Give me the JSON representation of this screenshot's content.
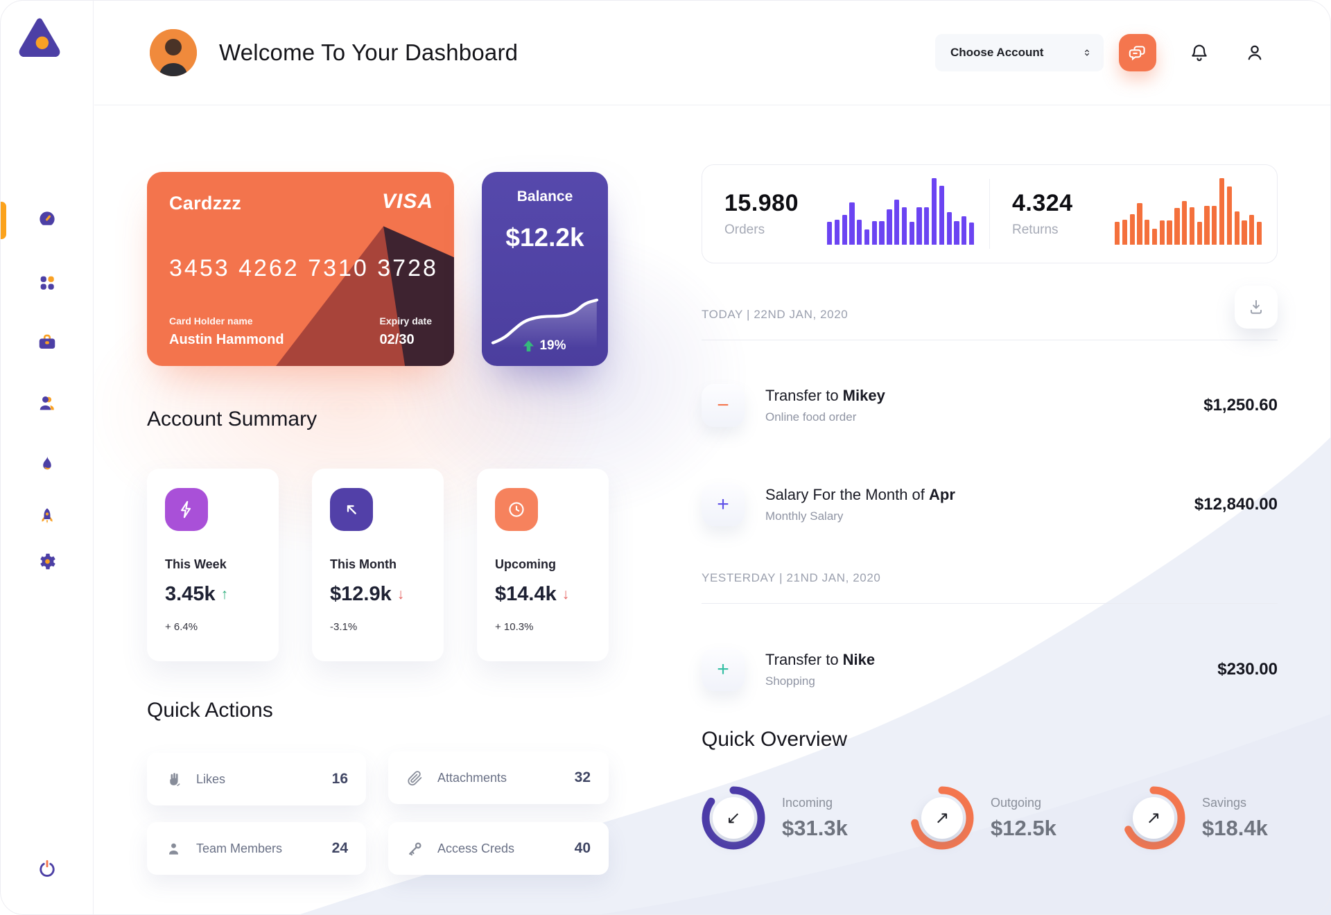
{
  "theme": {
    "purple": "#4C3FA5",
    "amber": "#F9A125",
    "salmon": "#F4764E",
    "violet_bars": "#6B44F2",
    "orange_bars": "#F4703C",
    "green": "#2EAE7D",
    "red": "#E4605E"
  },
  "header": {
    "title": "Welcome To Your Dashboard",
    "account_selector_label": "Choose Account"
  },
  "sidebar": {
    "items": [
      "dashboard",
      "apps",
      "work",
      "team",
      "activity",
      "launch",
      "settings"
    ],
    "logout": "power"
  },
  "card": {
    "name": "Cardzzz",
    "brand": "VISA",
    "number": "3453 4262 7310 3728",
    "holder_label": "Card Holder name",
    "holder": "Austin Hammond",
    "expiry_label": "Expiry date",
    "expiry": "02/30"
  },
  "balance": {
    "title": "Balance",
    "amount": "$12.2k",
    "change": "19%",
    "change_color": "#35B97C"
  },
  "account_summary": {
    "title": "Account Summary",
    "cards": [
      {
        "label": "This Week",
        "value": "3.45k",
        "arrow": "↑",
        "arrow_color": "#2EAE7D",
        "pct": "+ 6.4%",
        "icon": "lightning",
        "icon_bg": "#A950D8"
      },
      {
        "label": "This Month",
        "value": "$12.9k",
        "arrow": "↓",
        "arrow_color": "#E4605E",
        "pct": "-3.1%",
        "icon": "trend-up-left",
        "icon_bg": "#5240A8"
      },
      {
        "label": "Upcoming",
        "value": "$14.4k",
        "arrow": "↓",
        "arrow_color": "#E4605E",
        "pct": "+ 10.3%",
        "icon": "clock",
        "icon_bg": "#F6825D"
      }
    ]
  },
  "quick_actions": {
    "title": "Quick Actions",
    "items": [
      {
        "label": "Likes",
        "count": "16",
        "icon": "hand"
      },
      {
        "label": "Attachments",
        "count": "32",
        "icon": "paperclip"
      },
      {
        "label": "Team Members",
        "count": "24",
        "icon": "member"
      },
      {
        "label": "Access Creds",
        "count": "40",
        "icon": "key"
      }
    ]
  },
  "stats": {
    "orders": {
      "value": "15.980",
      "label": "Orders"
    },
    "returns": {
      "value": "4.324",
      "label": "Returns"
    }
  },
  "transactions": {
    "today_label": "TODAY | 22ND JAN, 2020",
    "yesterday_label": "YESTERDAY | 21ND JAN, 2020",
    "rows": [
      {
        "title_prefix": "Transfer to ",
        "title_bold": "Mikey",
        "subtitle": "Online food order",
        "amount": "$1,250.60",
        "sign": "−",
        "sign_color": "#F4764E"
      },
      {
        "title_prefix": "Salary For the Month of ",
        "title_bold": "Apr",
        "subtitle": "Monthly Salary",
        "amount": "$12,840.00",
        "sign": "+",
        "sign_color": "#5F51E8"
      },
      {
        "title_prefix": "Transfer to ",
        "title_bold": "Nike",
        "subtitle": "Shopping",
        "amount": "$230.00",
        "sign": "+",
        "sign_color": "#35BFA4"
      }
    ]
  },
  "quick_overview_title": "Quick Overview",
  "chart_data": [
    {
      "id": "orders-bars",
      "type": "bar",
      "title": "Orders activity",
      "color": "#6B44F2",
      "values_unit": "relative_height_percent",
      "values": [
        34,
        37,
        45,
        64,
        37,
        23,
        35,
        35,
        53,
        68,
        56,
        34,
        56,
        56,
        100,
        89,
        49,
        35,
        43,
        33
      ]
    },
    {
      "id": "returns-bars",
      "type": "bar",
      "title": "Returns activity",
      "color": "#F4703C",
      "values_unit": "relative_height_percent",
      "values": [
        34,
        38,
        46,
        63,
        37,
        24,
        36,
        36,
        55,
        66,
        56,
        34,
        58,
        58,
        100,
        88,
        50,
        36,
        45,
        34
      ]
    },
    {
      "id": "balance-trend",
      "type": "line",
      "title": "Balance trend",
      "color": "#FFFFFF",
      "points": [
        [
          4,
          84
        ],
        [
          18,
          78
        ],
        [
          32,
          64
        ],
        [
          46,
          51
        ],
        [
          62,
          45
        ],
        [
          78,
          43
        ],
        [
          94,
          43
        ],
        [
          106,
          41
        ],
        [
          118,
          35
        ],
        [
          130,
          23
        ],
        [
          146,
          18
        ]
      ]
    },
    {
      "id": "quick-overview-donuts",
      "type": "donut",
      "items": [
        {
          "label": "Incoming",
          "value": "$31.3k",
          "percent": 85,
          "color": "#4C3BA8",
          "arrow": "↙"
        },
        {
          "label": "Outgoing",
          "value": "$12.5k",
          "percent": 72,
          "color": "#F4764E",
          "arrow": "↗"
        },
        {
          "label": "Savings",
          "value": "$18.4k",
          "percent": 68,
          "color": "#F4764E",
          "arrow": "↗"
        }
      ]
    }
  ]
}
